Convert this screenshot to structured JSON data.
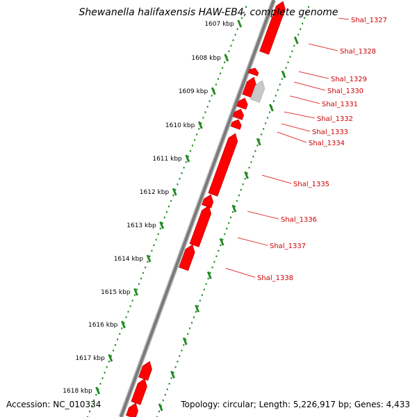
{
  "title": "Shewanella halifaxensis HAW-EB4, complete genome",
  "footer": {
    "accession": "Accession: NC_010334",
    "summary": "Topology: circular; Length: 5,226,917 bp; Genes: 4,433"
  },
  "colors": {
    "backbone": "#7a7a7a",
    "gene": "#ff0000",
    "pseudo_gene": "#c8c8c8",
    "tick_dots": "#228b22",
    "label_text": "#cc0000",
    "leader": "#dd0000"
  },
  "scale_unit": "kbp",
  "scale_ticks": [
    "1607 kbp",
    "1608 kbp",
    "1609 kbp",
    "1610 kbp",
    "1611 kbp",
    "1612 kbp",
    "1613 kbp",
    "1614 kbp",
    "1615 kbp",
    "1616 kbp",
    "1617 kbp",
    "1618 kbp"
  ],
  "gene_labels": [
    "Shal_1327",
    "Shal_1328",
    "Shal_1329",
    "Shal_1330",
    "Shal_1331",
    "Shal_1332",
    "Shal_1333",
    "Shal_1334",
    "Shal_1335",
    "Shal_1336",
    "Shal_1337",
    "Shal_1338"
  ]
}
